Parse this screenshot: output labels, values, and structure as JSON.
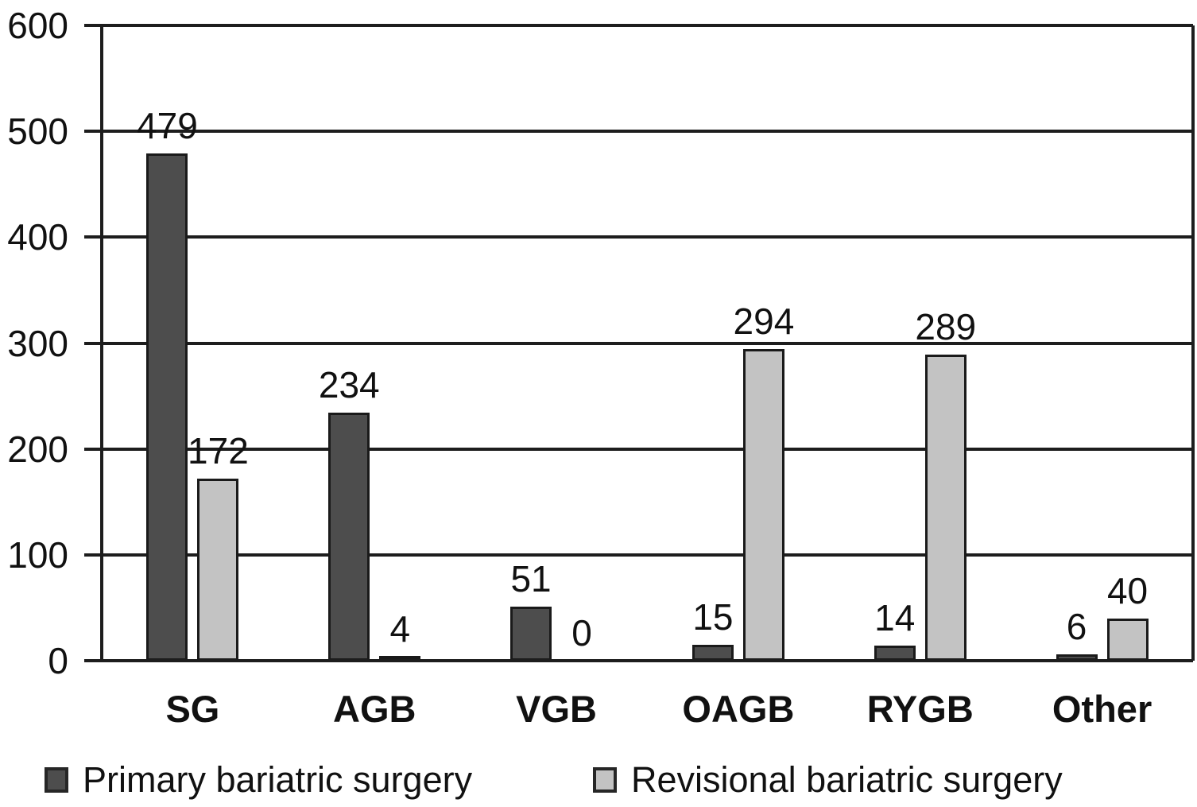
{
  "chart_data": {
    "type": "bar",
    "categories": [
      "SG",
      "AGB",
      "VGB",
      "OAGB",
      "RYGB",
      "Other"
    ],
    "series": [
      {
        "name": "Primary bariatric surgery",
        "color": "#4d4d4d",
        "values": [
          479,
          234,
          51,
          15,
          14,
          6
        ]
      },
      {
        "name": "Revisional bariatric surgery",
        "color": "#c3c3c3",
        "values": [
          172,
          4,
          0,
          294,
          289,
          40
        ]
      }
    ],
    "title": "",
    "xlabel": "",
    "ylabel": "",
    "ylim": [
      0,
      600
    ],
    "yticks": [
      0,
      100,
      200,
      300,
      400,
      500,
      600
    ],
    "grid": true,
    "legend_position": "bottom",
    "show_value_labels": true,
    "axis_color": "#1d1d1d",
    "bar_border_color": "#1a1a1a"
  }
}
